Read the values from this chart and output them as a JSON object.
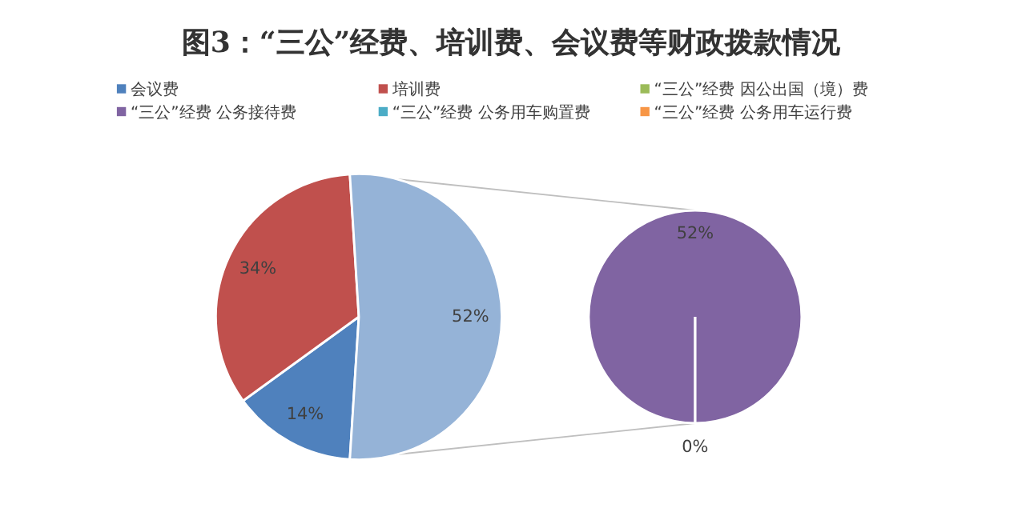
{
  "chart_data": [
    {
      "type": "pie",
      "title": "图3：“三公”经费、培训费、会议费等财政拨款情况",
      "categories": [
        "会议费",
        "培训费",
        null
      ],
      "values": [
        14,
        34,
        52
      ],
      "colors": [
        "#4f81bd",
        "#c0504d",
        "#95b3d7"
      ],
      "value_labels": [
        "14%",
        "34%",
        "52%"
      ],
      "legend": "top"
    },
    {
      "type": "pie",
      "categories": [
        "“三公”经费 因公出国（境）费",
        "“三公”经费 公务接待费",
        "“三公”经费 公务用车购置费",
        "“三公”经费 公务用车运行费"
      ],
      "values": [
        0,
        52,
        0,
        0
      ],
      "colors": [
        "#9bbb59",
        "#8064a2",
        "#4bacc6",
        "#f79646"
      ],
      "value_labels": [
        null,
        "52%",
        "0%",
        null
      ],
      "legend": "top"
    }
  ]
}
